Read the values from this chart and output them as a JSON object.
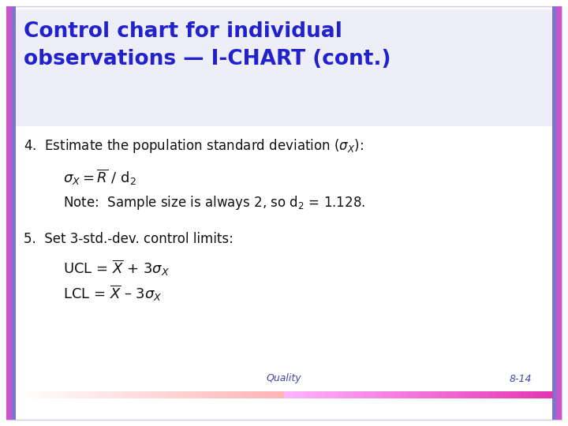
{
  "title_line1": "Control chart for individual",
  "title_line2": "observations — I-CHART (cont.)",
  "title_color": "#2222CC",
  "title_fontsize": 19,
  "body_color": "#111111",
  "body_fontsize": 12,
  "footer_text_left": "Quality",
  "footer_text_right": "8-14",
  "footer_color": "#4444AA",
  "background_color": "#FFFFFF",
  "border_left_outer": "#CC55CC",
  "border_left_inner": "#6666BB",
  "border_right_outer": "#CC55CC",
  "border_right_inner": "#6666BB",
  "header_bg_color": "#F0F0FA"
}
